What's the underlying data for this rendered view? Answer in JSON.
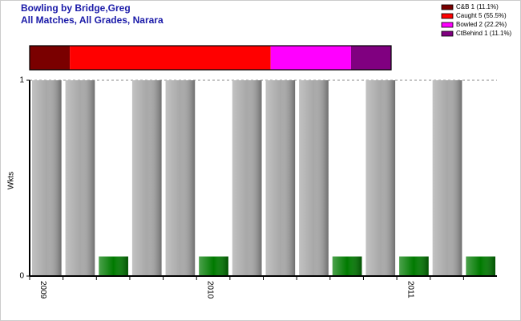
{
  "chart_data": [
    {
      "type": "stacked-bar",
      "xlim": [
        0,
        9
      ],
      "series": [
        {
          "name": "C&B 1 (11.1%)",
          "color": "#7a0000",
          "values": [
            1
          ]
        },
        {
          "name": "Caught 5 (55.5%)",
          "color": "#ff0000",
          "values": [
            5
          ]
        },
        {
          "name": "Bowled 2 (22.2%)",
          "color": "#ff00ff",
          "values": [
            2
          ]
        },
        {
          "name": "CtBehind 1 (11.1%)",
          "color": "#800080",
          "values": [
            1
          ]
        }
      ]
    },
    {
      "type": "bar",
      "title": "Bowling by Bridge,Greg",
      "subtitle": "All Matches, All Grades, Narara",
      "y_label": "Wkts",
      "categories": [
        "2009",
        null,
        null,
        null,
        null,
        "2010",
        null,
        null,
        null,
        null,
        null,
        "2011",
        null,
        null
      ],
      "values": [
        1,
        1,
        0.1,
        1,
        1,
        0.1,
        1,
        1,
        1,
        0.1,
        1,
        0.1,
        1,
        0.1
      ],
      "colors": [
        "#a8a8a8",
        "#a8a8a8",
        "#007a00",
        "#a8a8a8",
        "#a8a8a8",
        "#007a00",
        "#a8a8a8",
        "#a8a8a8",
        "#a8a8a8",
        "#007a00",
        "#a8a8a8",
        "#007a00",
        "#a8a8a8",
        "#007a00"
      ],
      "ylim": [
        0,
        1
      ],
      "yticks": [
        0,
        1
      ],
      "grid": true
    }
  ]
}
